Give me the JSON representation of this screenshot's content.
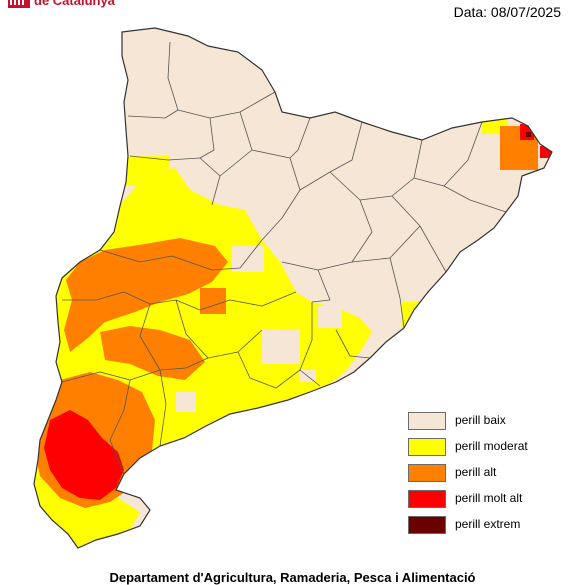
{
  "header": {
    "org_text": "de Catalunya",
    "date_text": "Data: 08/07/2025",
    "brand_color": "#c8102e"
  },
  "legend": {
    "items": [
      {
        "label": "perill baix",
        "color": "#f5e6d6"
      },
      {
        "label": "perill moderat",
        "color": "#ffff00"
      },
      {
        "label": "perill alt",
        "color": "#ff8000"
      },
      {
        "label": "perill molt alt",
        "color": "#ff0000"
      },
      {
        "label": "perill extrem",
        "color": "#6b0000"
      }
    ]
  },
  "footer": {
    "department_text": "Departament d'Agricultura, Ramaderia, Pesca i Alimentació"
  }
}
